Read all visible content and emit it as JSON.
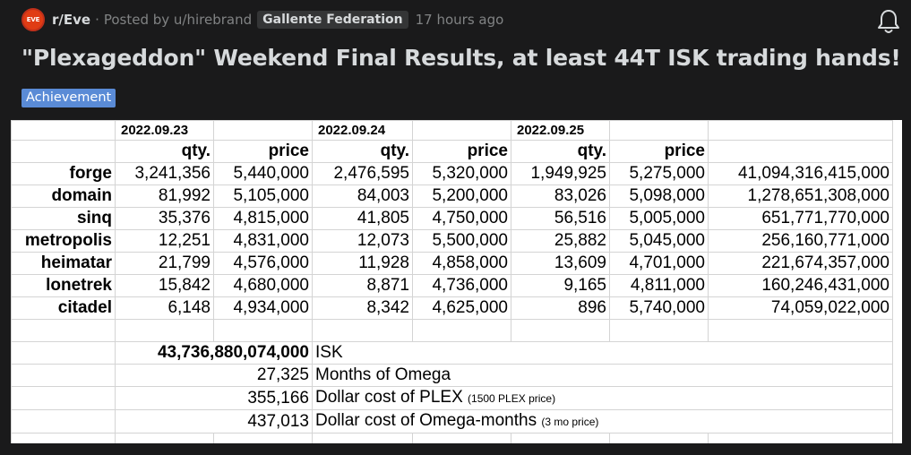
{
  "post": {
    "subreddit_icon_text": "EVE",
    "subreddit": "r/Eve",
    "separator": "·",
    "posted_by": "Posted by u/hirebrand",
    "flair": "Gallente Federation",
    "time": "17 hours ago",
    "title": "\"Plexageddon\" Weekend Final Results, at least 44T ISK trading hands!",
    "tag": "Achievement"
  },
  "sheet": {
    "dates": [
      "2022.09.23",
      "2022.09.24",
      "2022.09.25"
    ],
    "col_qty": "qty.",
    "col_price": "price",
    "rows": [
      {
        "region": "forge",
        "q1": "3,241,356",
        "p1": "5,440,000",
        "q2": "2,476,595",
        "p2": "5,320,000",
        "q3": "1,949,925",
        "p3": "5,275,000",
        "total": "41,094,316,415,000"
      },
      {
        "region": "domain",
        "q1": "81,992",
        "p1": "5,105,000",
        "q2": "84,003",
        "p2": "5,200,000",
        "q3": "83,026",
        "p3": "5,098,000",
        "total": "1,278,651,308,000"
      },
      {
        "region": "sinq",
        "q1": "35,376",
        "p1": "4,815,000",
        "q2": "41,805",
        "p2": "4,750,000",
        "q3": "56,516",
        "p3": "5,005,000",
        "total": "651,771,770,000"
      },
      {
        "region": "metropolis",
        "q1": "12,251",
        "p1": "4,831,000",
        "q2": "12,073",
        "p2": "5,500,000",
        "q3": "25,882",
        "p3": "5,045,000",
        "total": "256,160,771,000"
      },
      {
        "region": "heimatar",
        "q1": "21,799",
        "p1": "4,576,000",
        "q2": "11,928",
        "p2": "4,858,000",
        "q3": "13,609",
        "p3": "4,701,000",
        "total": "221,674,357,000"
      },
      {
        "region": "lonetrek",
        "q1": "15,842",
        "p1": "4,680,000",
        "q2": "8,871",
        "p2": "4,736,000",
        "q3": "9,165",
        "p3": "4,811,000",
        "total": "160,246,431,000"
      },
      {
        "region": "citadel",
        "q1": "6,148",
        "p1": "4,934,000",
        "q2": "8,342",
        "p2": "4,625,000",
        "q3": "896",
        "p3": "5,740,000",
        "total": "74,059,022,000"
      }
    ],
    "summary": [
      {
        "value": "43,736,880,074,000",
        "label": "ISK",
        "note": ""
      },
      {
        "value": "27,325",
        "label": "Months of Omega",
        "note": ""
      },
      {
        "value": "355,166",
        "label": "Dollar cost of PLEX",
        "note": "(1500 PLEX price)"
      },
      {
        "value": "437,013",
        "label": "Dollar cost of Omega-months",
        "note": "(3 mo price)"
      }
    ]
  }
}
